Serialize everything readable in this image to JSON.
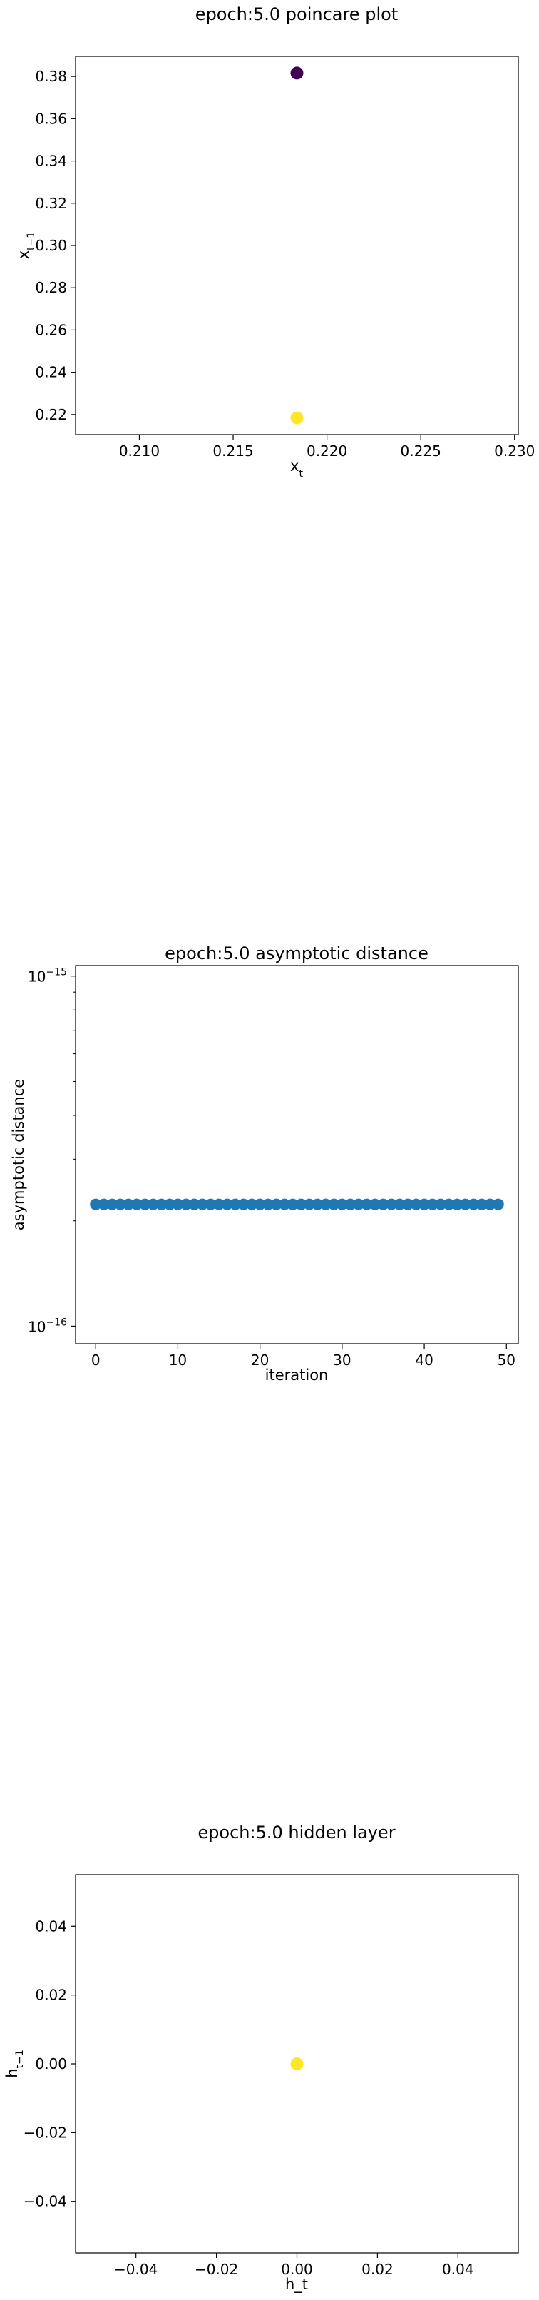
{
  "chart_data": [
    {
      "type": "scatter",
      "title": "epoch:5.0 poincare plot",
      "xlabel": "x_t",
      "ylabel": "x_{t-1}",
      "xlim": [
        0.2066,
        0.2302
      ],
      "ylim": [
        0.2105,
        0.3895
      ],
      "xticks": [
        0.21,
        0.215,
        0.22,
        0.225,
        0.23
      ],
      "xtick_labels": [
        "0.210",
        "0.215",
        "0.220",
        "0.225",
        "0.230"
      ],
      "yticks": [
        0.22,
        0.24,
        0.26,
        0.28,
        0.3,
        0.32,
        0.34,
        0.36,
        0.38
      ],
      "ytick_labels": [
        "0.22",
        "0.24",
        "0.26",
        "0.28",
        "0.30",
        "0.32",
        "0.34",
        "0.36",
        "0.38"
      ],
      "points": [
        {
          "x": 0.2184,
          "y": 0.3816,
          "color": "#440154"
        },
        {
          "x": 0.2184,
          "y": 0.2184,
          "color": "#fde725"
        }
      ],
      "grid": false
    },
    {
      "type": "scatter",
      "title": "epoch:5.0 asymptotic distance",
      "xlabel": "iteration",
      "ylabel": "asymptotic distance",
      "xlim": [
        -2.45,
        51.45
      ],
      "ylim_log10": [
        -16.05,
        -14.97
      ],
      "yscale": "log",
      "xticks": [
        0,
        10,
        20,
        30,
        40,
        50
      ],
      "xtick_labels": [
        "0",
        "10",
        "20",
        "30",
        "40",
        "50"
      ],
      "yticks_log10": [
        -16,
        -15
      ],
      "ytick_base": "10",
      "ytick_exponents": [
        "−16",
        "−15"
      ],
      "y_constant_log10": -15.652,
      "x_count": 50,
      "color": "#1f77b4",
      "grid": false
    },
    {
      "type": "scatter",
      "title": "epoch:5.0 hidden layer",
      "xlabel": "h_t",
      "ylabel": "h_{t-1}",
      "xlim": [
        -0.055,
        0.055
      ],
      "ylim": [
        -0.055,
        0.055
      ],
      "xticks": [
        -0.04,
        -0.02,
        0.0,
        0.02,
        0.04
      ],
      "xtick_labels": [
        "−0.04",
        "−0.02",
        "0.00",
        "0.02",
        "0.04"
      ],
      "yticks": [
        -0.04,
        -0.02,
        0.0,
        0.02,
        0.04
      ],
      "ytick_labels": [
        "−0.04",
        "−0.02",
        "0.00",
        "0.02",
        "0.04"
      ],
      "points": [
        {
          "x": 0.0,
          "y": 0.0,
          "color": "#fde725"
        }
      ],
      "grid": false
    }
  ]
}
